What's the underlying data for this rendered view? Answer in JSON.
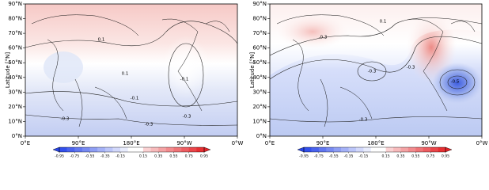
{
  "panels": [
    {
      "y_label": "Latitude [°N]",
      "y_ticks": [
        "90°N",
        "80°N",
        "70°N",
        "60°N",
        "50°N",
        "40°N",
        "30°N",
        "20°N",
        "10°N",
        "0°N"
      ],
      "x_ticks": [
        "0°E",
        "90°E",
        "180°E",
        "90°W",
        "0°W"
      ],
      "colorbar_ticks": [
        -0.95,
        -0.75,
        -0.55,
        -0.35,
        -0.15,
        0.15,
        0.35,
        0.55,
        0.75,
        0.95
      ],
      "contour_labels": [
        "0.1",
        "0.1",
        "-0.1",
        "-0.1",
        "-0.3",
        "-0.3",
        "-0.3"
      ]
    },
    {
      "y_label": "Latitude [°N]",
      "y_ticks": [
        "90°N",
        "80°N",
        "70°N",
        "60°N",
        "50°N",
        "40°N",
        "30°N",
        "20°N",
        "10°N",
        "0°N"
      ],
      "x_ticks": [
        "0°E",
        "90°E",
        "180°E",
        "90°W",
        "0°W"
      ],
      "colorbar_ticks": [
        -0.95,
        -0.75,
        -0.55,
        -0.35,
        -0.15,
        0.15,
        0.35,
        0.55,
        0.75,
        0.95
      ],
      "contour_labels": [
        "0.1",
        "-0.3",
        "-0.3",
        "-0.3",
        "-0.5",
        "-0.3"
      ]
    }
  ]
}
